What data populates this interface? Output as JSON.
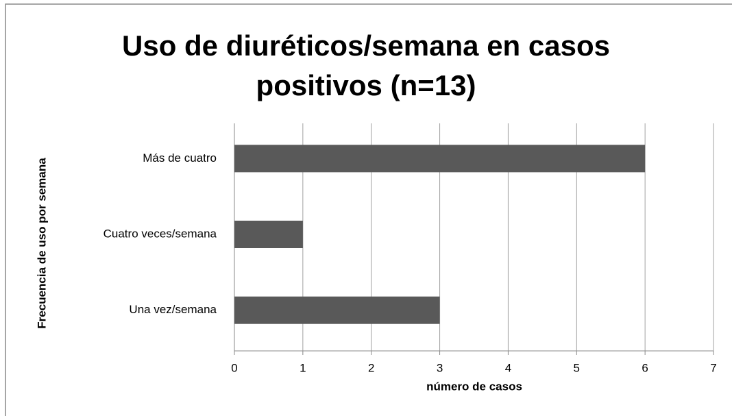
{
  "chart_data": {
    "type": "bar",
    "orientation": "horizontal",
    "title": "Uso de diuréticos/semana en casos positivos (n=13)",
    "x_label": "número de casos",
    "y_label": "Frecuencia de uso  por semana",
    "categories": [
      "Más de cuatro",
      "Cuatro veces/semana",
      "Una vez/semana"
    ],
    "values": [
      6,
      1,
      3
    ],
    "color": "#595959",
    "xlim": [
      0,
      7
    ],
    "xticks": [
      0,
      1,
      2,
      3,
      4,
      5,
      6,
      7
    ],
    "grid": true
  }
}
